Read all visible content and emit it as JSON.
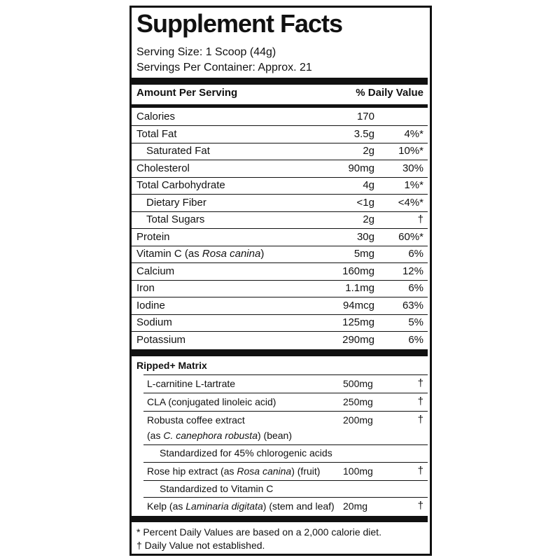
{
  "title": "Supplement Facts",
  "serving_size": "Serving Size: 1 Scoop (44g)",
  "servings_per_container": "Servings Per Container: Approx. 21",
  "header": {
    "amount": "Amount Per Serving",
    "daily_value": "% Daily Value"
  },
  "nutrients": [
    {
      "name": "Calories",
      "amount": "170"
    },
    {
      "name": "Total Fat",
      "amount": "3.5g",
      "dv": "4%*"
    },
    {
      "name": "Saturated Fat",
      "amount": "2g",
      "dv": "10%*",
      "sub": true
    },
    {
      "name": "Cholesterol",
      "amount": "90mg",
      "dv": "30%"
    },
    {
      "name": "Total Carbohydrate",
      "amount": "4g",
      "dv": "1%*"
    },
    {
      "name": "Dietary Fiber",
      "amount": "<1g",
      "dv": "<4%*",
      "sub": true
    },
    {
      "name": "Total Sugars",
      "amount": "2g",
      "dv": "†",
      "sub": true
    },
    {
      "name": "Protein",
      "amount": "30g",
      "dv": "60%*"
    },
    {
      "name": [
        "Vitamin C (as ",
        "Rosa canina",
        ")"
      ],
      "amount": "5mg",
      "dv": "6%"
    },
    {
      "name": "Calcium",
      "amount": "160mg",
      "dv": "12%"
    },
    {
      "name": "Iron",
      "amount": "1.1mg",
      "dv": "6%"
    },
    {
      "name": "Iodine",
      "amount": "94mcg",
      "dv": "63%"
    },
    {
      "name": "Sodium",
      "amount": "125mg",
      "dv": "5%"
    },
    {
      "name": "Potassium",
      "amount": "290mg",
      "dv": "6%"
    }
  ],
  "matrix": {
    "title": "Ripped+ Matrix",
    "items": [
      {
        "name": "L-carnitine L-tartrate",
        "amount": "500mg",
        "dv": "†"
      },
      {
        "name": "CLA (conjugated linoleic acid)",
        "amount": "250mg",
        "dv": "†"
      },
      {
        "name": "Robusta coffee extract",
        "name2": [
          "(as ",
          "C. canephora robusta",
          ") (bean)"
        ],
        "amount": "200mg",
        "dv": "†",
        "note": "Standardized for 45% chlorogenic acids"
      },
      {
        "name": [
          "Rose hip extract (as ",
          "Rosa canina",
          ") (fruit)"
        ],
        "amount": "100mg",
        "dv": "†",
        "note": "Standardized to Vitamin C"
      },
      {
        "name": [
          "Kelp (as ",
          "Laminaria digitata",
          ") (stem and leaf)"
        ],
        "amount": "20mg",
        "dv": "†"
      }
    ]
  },
  "footnotes": [
    "* Percent Daily Values are based on a 2,000 calorie diet.",
    "† Daily Value not established."
  ]
}
